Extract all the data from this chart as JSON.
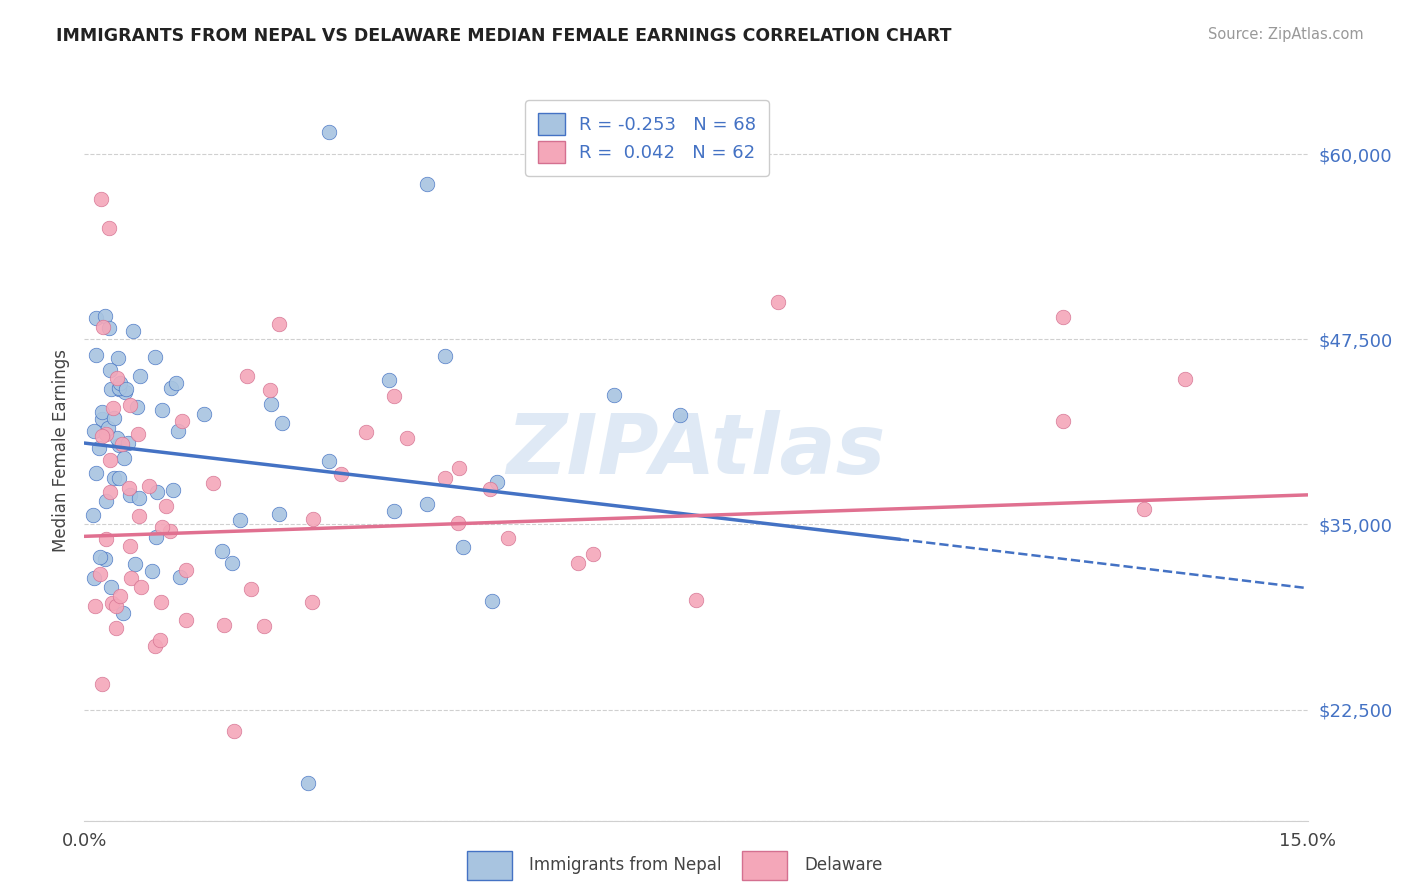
{
  "title": "IMMIGRANTS FROM NEPAL VS DELAWARE MEDIAN FEMALE EARNINGS CORRELATION CHART",
  "source": "Source: ZipAtlas.com",
  "ylabel": "Median Female Earnings",
  "x_min": 0.0,
  "x_max": 0.15,
  "y_min": 15000,
  "y_max": 65000,
  "y_ticks": [
    22500,
    35000,
    47500,
    60000
  ],
  "y_tick_labels": [
    "$22,500",
    "$35,000",
    "$47,500",
    "$60,000"
  ],
  "color_nepal": "#a8c4e0",
  "color_nepal_edge": "#4472c4",
  "color_delaware": "#f4a7b9",
  "color_delaware_edge": "#d47090",
  "color_nepal_line": "#4472c4",
  "color_delaware_line": "#e07090",
  "color_axis_labels": "#4472c4",
  "color_grid": "#d0d0d0",
  "watermark_text": "ZIPAtlas",
  "watermark_color": "#c5d8ee",
  "legend_label1": "R = -0.253   N = 68",
  "legend_label2": "R =  0.042   N = 62",
  "bottom_legend1": "Immigrants from Nepal",
  "bottom_legend2": "Delaware",
  "nepal_line_x0": 0.0,
  "nepal_line_y0": 40500,
  "nepal_line_x1": 0.1,
  "nepal_line_y1": 34000,
  "nepal_line_x1d": 0.15,
  "nepal_line_y1d": 30700,
  "delaware_line_x0": 0.0,
  "delaware_line_y0": 34200,
  "delaware_line_x1": 0.15,
  "delaware_line_y1": 37000
}
